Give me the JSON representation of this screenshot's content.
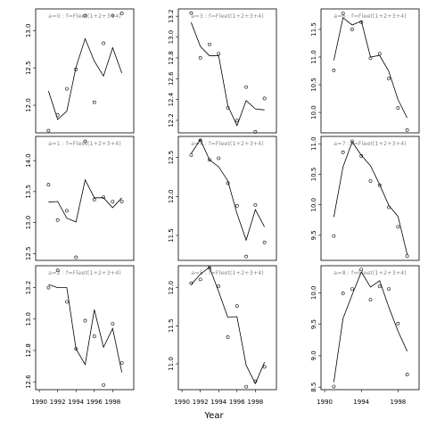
{
  "x_label": "Year",
  "chart_data": [
    {
      "type": "scatter",
      "title": "a=0 : f=Fleet(1+2+3+4)",
      "x": [
        1991,
        1992,
        1993,
        1994,
        1995,
        1996,
        1997,
        1998,
        1999
      ],
      "values": [
        11.66,
        11.87,
        12.22,
        12.48,
        13.2,
        12.04,
        12.83,
        13.2,
        13.23
      ],
      "fit": [
        12.19,
        11.81,
        11.92,
        12.51,
        12.89,
        12.59,
        12.39,
        12.77,
        12.43
      ],
      "xlim": [
        1989.6,
        2000.3
      ],
      "ylim": [
        11.63,
        13.29
      ],
      "yticks": [
        {
          "value": 12,
          "label": "12.0"
        },
        12.5,
        {
          "value": 13,
          "label": "13.0"
        }
      ]
    },
    {
      "type": "scatter",
      "title": "a=1 : f=Fleet(1+2+3+4)",
      "x": [
        1991,
        1992,
        1993,
        1994,
        1995,
        1996,
        1997,
        1998,
        1999
      ],
      "values": [
        13.61,
        13.04,
        13.19,
        12.44,
        14.31,
        13.37,
        13.41,
        13.34,
        13.34
      ],
      "fit": [
        13.33,
        13.34,
        13.07,
        13.01,
        13.69,
        13.4,
        13.4,
        13.24,
        13.4
      ],
      "xlim": [
        1989.6,
        2000.3
      ],
      "ylim": [
        12.39,
        14.39
      ],
      "yticks": [
        12.5,
        {
          "value": 13,
          "label": "13.0"
        },
        13.5,
        {
          "value": 14,
          "label": "14.0"
        }
      ]
    },
    {
      "type": "scatter",
      "title": "a=2 : f=Fleet(1+2+3+4)",
      "x": [
        1991,
        1992,
        1993,
        1994,
        1995,
        1996,
        1997,
        1998,
        1999
      ],
      "values": [
        13.2,
        13.31,
        13.11,
        12.81,
        12.99,
        12.89,
        12.58,
        12.97,
        12.72
      ],
      "fit": [
        13.22,
        13.2,
        13.2,
        12.81,
        12.71,
        13.06,
        12.82,
        12.94,
        12.66
      ],
      "xlim": [
        1989.6,
        2000.3
      ],
      "ylim": [
        12.55,
        13.34
      ],
      "yticks": [
        12.6,
        12.8,
        {
          "value": 13,
          "label": "13.0"
        },
        13.2
      ],
      "xticks": [
        1990,
        1992,
        1994,
        1996,
        1998
      ]
    },
    {
      "type": "scatter",
      "title": "a=3 : f=Fleet(1+2+3+4)",
      "x": [
        1991,
        1992,
        1993,
        1994,
        1995,
        1996,
        1997,
        1998,
        1999
      ],
      "values": [
        13.23,
        12.8,
        12.93,
        12.84,
        12.32,
        12.2,
        12.52,
        12.09,
        12.41
      ],
      "fit": [
        13.14,
        12.91,
        12.82,
        12.82,
        12.34,
        12.15,
        12.39,
        12.31,
        12.3
      ],
      "xlim": [
        1989.6,
        2000.3
      ],
      "ylim": [
        12.08,
        13.27
      ],
      "yticks": [
        12.2,
        12.4,
        12.6,
        12.8,
        {
          "value": 13,
          "label": "13.0"
        },
        13.2
      ]
    },
    {
      "type": "scatter",
      "title": "a=4 : f=Fleet(1+2+3+4)",
      "x": [
        1991,
        1992,
        1993,
        1994,
        1995,
        1996,
        1997,
        1998,
        1999
      ],
      "values": [
        12.53,
        12.72,
        12.47,
        12.49,
        12.17,
        11.88,
        11.23,
        11.89,
        11.41
      ],
      "fit": [
        12.55,
        12.73,
        12.47,
        12.38,
        12.2,
        11.78,
        11.44,
        11.83,
        11.61
      ],
      "xlim": [
        1989.6,
        2000.3
      ],
      "ylim": [
        11.18,
        12.77
      ],
      "yticks": [
        11.5,
        {
          "value": 12,
          "label": "12.0"
        },
        12.5
      ]
    },
    {
      "type": "scatter",
      "title": "a=5 : f=Fleet(1+2+3+4)",
      "x": [
        1991,
        1992,
        1993,
        1994,
        1995,
        1996,
        1997,
        1998,
        1999
      ],
      "values": [
        12.06,
        12.11,
        12.26,
        12.02,
        11.35,
        11.76,
        10.7,
        10.77,
        10.96
      ],
      "fit": [
        12.04,
        12.18,
        12.27,
        11.95,
        11.61,
        11.62,
        10.98,
        10.74,
        11.02
      ],
      "xlim": [
        1989.6,
        2000.3
      ],
      "ylim": [
        10.66,
        12.29
      ],
      "yticks": [
        {
          "value": 11,
          "label": "11.0"
        },
        11.5,
        {
          "value": 12,
          "label": "12.0"
        }
      ],
      "xticks": [
        1990,
        1992,
        1994,
        1996,
        1998
      ]
    },
    {
      "type": "scatter",
      "title": "a=6 : f=Fleet(1+2+3+4)",
      "x": [
        1991,
        1992,
        1993,
        1994,
        1995,
        1996,
        1997,
        1998,
        1999
      ],
      "values": [
        10.76,
        11.79,
        11.5,
        11.63,
        10.98,
        11.06,
        10.61,
        10.08,
        9.68
      ],
      "fit": [
        10.94,
        11.71,
        11.58,
        11.65,
        11.0,
        11.03,
        10.74,
        10.23,
        9.9
      ],
      "xlim": [
        1989.6,
        2000.3
      ],
      "ylim": [
        9.63,
        11.87
      ],
      "yticks": [
        {
          "value": 10,
          "label": "10.0"
        },
        10.5,
        {
          "value": 11,
          "label": "11.0"
        },
        11.5
      ]
    },
    {
      "type": "scatter",
      "title": "a=7 : f=Fleet(1+2+3+4)",
      "x": [
        1991,
        1992,
        1993,
        1994,
        1995,
        1996,
        1997,
        1998,
        1999
      ],
      "values": [
        9.49,
        10.86,
        11.04,
        10.8,
        10.39,
        10.32,
        9.96,
        9.64,
        9.16
      ],
      "fit": [
        9.8,
        10.62,
        11.03,
        10.81,
        10.64,
        10.33,
        9.99,
        9.81,
        9.19
      ],
      "xlim": [
        1989.6,
        2000.3
      ],
      "ylim": [
        9.09,
        11.12
      ],
      "yticks": [
        9.5,
        {
          "value": 10,
          "label": "10.0"
        },
        10.5,
        {
          "value": 11,
          "label": "11.0"
        }
      ]
    },
    {
      "type": "scatter",
      "title": "a=8 : f=Fleet(1+2+3+4)",
      "x": [
        1991,
        1992,
        1993,
        1994,
        1995,
        1996,
        1997,
        1998,
        1999
      ],
      "values": [
        8.51,
        9.99,
        10.06,
        10.37,
        9.89,
        10.1,
        10.06,
        9.51,
        8.7
      ],
      "fit": [
        8.58,
        9.59,
        9.97,
        10.33,
        10.09,
        10.19,
        9.77,
        9.39,
        9.07
      ],
      "xlim": [
        1989.6,
        2000.3
      ],
      "ylim": [
        8.46,
        10.43
      ],
      "yticks": [
        8.5,
        {
          "value": 9,
          "label": "9.0"
        },
        9.5,
        {
          "value": 10,
          "label": "10.0"
        }
      ],
      "xticks": [
        1990,
        1994,
        1998
      ]
    }
  ]
}
